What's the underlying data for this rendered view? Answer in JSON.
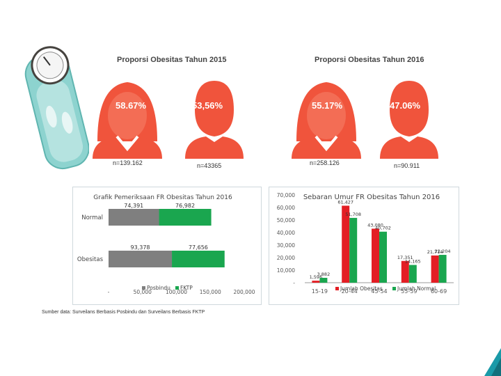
{
  "infographic": {
    "title_2015": "Proporsi Obesitas Tahun 2015",
    "title_2016": "Proporsi Obesitas Tahun 2016",
    "figures": [
      {
        "pct": "58.67%",
        "n": "n=139.162",
        "year": "2015"
      },
      {
        "pct": "53,56%",
        "n": "n=43365",
        "year": "2015"
      },
      {
        "pct": "55.17%",
        "n": "n=258.126",
        "year": "2016"
      },
      {
        "pct": "47.06%",
        "n": "n=90.911",
        "year": "2016"
      }
    ],
    "colors": {
      "figure": "#f0543c",
      "skin": "#f0543c",
      "scale": "#6ec3c0"
    }
  },
  "source": "Sumber data: Surveilans Berbasis Posbindu dan Surveilans Berbasis FKTP",
  "chart_data": [
    {
      "type": "bar",
      "orientation": "horizontal",
      "stacked": true,
      "title": "Grafik Pemeriksaan FR Obesitas Tahun 2016",
      "categories": [
        "Normal",
        "Obesitas"
      ],
      "series": [
        {
          "name": "Posbindu",
          "values": [
            74391,
            93378
          ],
          "labels": [
            "74,391",
            "93,378"
          ],
          "color": "#7f7f7f"
        },
        {
          "name": "FKTP",
          "values": [
            76982,
            77656
          ],
          "labels": [
            "76,982",
            "77,656"
          ],
          "color": "#1aa64f"
        }
      ],
      "xticks": [
        "-",
        "50,000",
        "100,000",
        "150,000",
        "200,000"
      ],
      "xlim": [
        0,
        200000
      ],
      "legend_position": "bottom"
    },
    {
      "type": "bar",
      "title": "Sebaran Umur FR Obesitas Tahun 2016",
      "categories": [
        "15-19",
        "20-44",
        "45-54",
        "55-59",
        "60-69"
      ],
      "series": [
        {
          "name": "Jumlah Obesitas",
          "values": [
            1596,
            61427,
            43080,
            17351,
            21714
          ],
          "labels": [
            "1,596",
            "61,427",
            "43,080",
            "17,351",
            "21,714"
          ],
          "color": "#e31e24"
        },
        {
          "name": "Jumlah Normal",
          "values": [
            3882,
            51708,
            40702,
            14165,
            22204
          ],
          "labels": [
            "3,882",
            "51,708",
            "40,702",
            "14,165",
            "22,204"
          ],
          "color": "#1aa64f"
        }
      ],
      "yticks": [
        "-",
        "10,000",
        "20,000",
        "30,000",
        "40,000",
        "50,000",
        "60,000",
        "70,000"
      ],
      "ylim": [
        0,
        70000
      ],
      "legend_position": "bottom"
    }
  ]
}
